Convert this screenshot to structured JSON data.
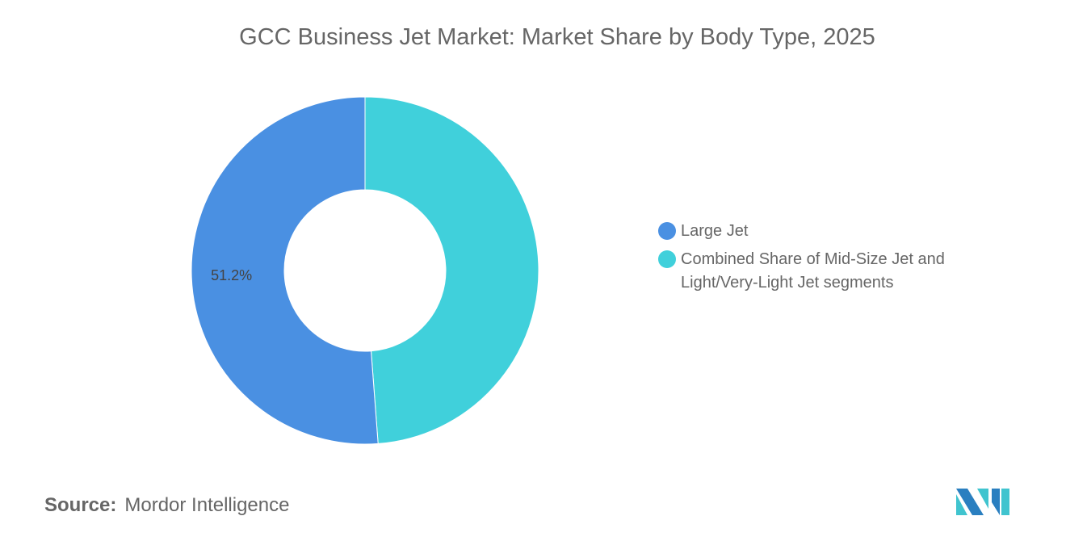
{
  "chart_data": {
    "type": "pie",
    "donut": true,
    "title": "GCC Business Jet Market: Market Share by Body Type, 2025",
    "slices": [
      {
        "name": "Large Jet",
        "value": 51.2,
        "label": "51.2%",
        "color": "#4a90e2"
      },
      {
        "name": "Combined Share of Mid-Size Jet and Light/Very-Light Jet segments",
        "value": 48.8,
        "label": "",
        "color": "#40d0db"
      }
    ],
    "legend_placement": "right"
  },
  "source": {
    "label": "Source:",
    "value": "Mordor Intelligence"
  },
  "logo": {
    "text": "Mordor Intelligence",
    "colors": [
      "#2a7fc0",
      "#40c4cf"
    ]
  }
}
